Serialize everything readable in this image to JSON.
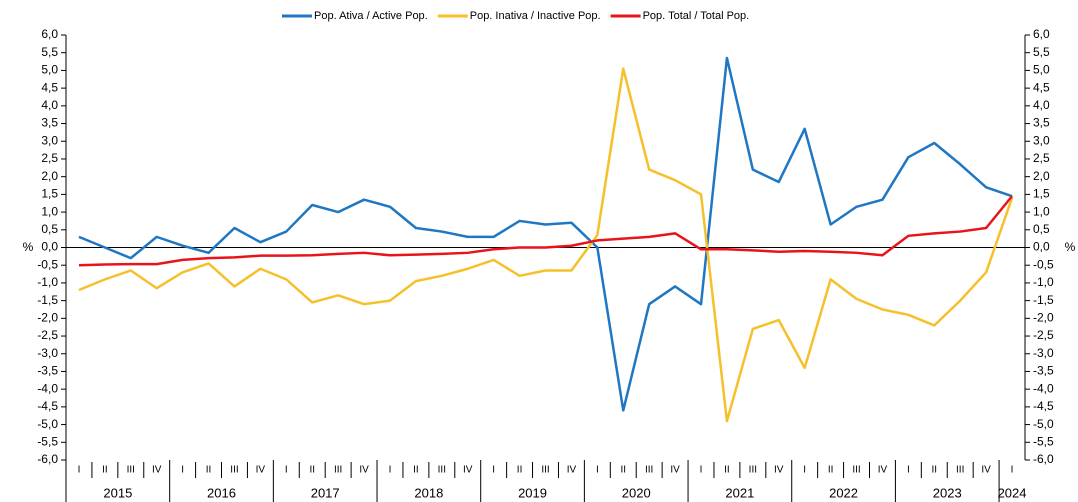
{
  "chart_data": {
    "type": "line",
    "ylabel": "%",
    "y2label": "%",
    "categories": [
      "I",
      "II",
      "III",
      "IV",
      "I",
      "II",
      "III",
      "IV",
      "I",
      "II",
      "III",
      "IV",
      "I",
      "II",
      "III",
      "IV",
      "I",
      "II",
      "III",
      "IV",
      "I",
      "II",
      "III",
      "IV",
      "I",
      "II",
      "III",
      "IV",
      "I",
      "II",
      "III",
      "IV",
      "I",
      "II",
      "III",
      "IV",
      "I"
    ],
    "years": [
      "2015",
      "2016",
      "2017",
      "2018",
      "2019",
      "2020",
      "2021",
      "2022",
      "2023",
      "2024"
    ],
    "series": [
      {
        "name": "Pop. Ativa / Active Pop.",
        "color": "#1f77c4",
        "values": [
          0.3,
          0.0,
          -0.3,
          0.3,
          0.05,
          -0.15,
          0.55,
          0.15,
          0.45,
          1.2,
          1.0,
          1.35,
          1.15,
          0.55,
          0.45,
          0.3,
          0.3,
          0.75,
          0.65,
          0.7,
          0.0,
          -4.6,
          -1.6,
          -1.1,
          -1.6,
          5.35,
          2.2,
          1.85,
          3.35,
          0.65,
          1.15,
          1.35,
          2.55,
          2.95,
          2.35,
          1.7,
          1.45
        ]
      },
      {
        "name": "Pop. Inativa / Inactive Pop.",
        "color": "#f5c02a",
        "values": [
          -1.2,
          -0.9,
          -0.65,
          -1.15,
          -0.7,
          -0.45,
          -1.1,
          -0.6,
          -0.9,
          -1.55,
          -1.35,
          -1.6,
          -1.5,
          -0.95,
          -0.8,
          -0.6,
          -0.35,
          -0.8,
          -0.65,
          -0.65,
          0.35,
          5.05,
          2.2,
          1.9,
          1.5,
          -4.9,
          -2.3,
          -2.05,
          -3.4,
          -0.9,
          -1.45,
          -1.75,
          -1.9,
          -2.2,
          -1.5,
          -0.7,
          1.4
        ]
      },
      {
        "name": "Pop. Total / Total Pop.",
        "color": "#e8141c",
        "values": [
          -0.5,
          -0.48,
          -0.47,
          -0.47,
          -0.35,
          -0.3,
          -0.28,
          -0.23,
          -0.23,
          -0.22,
          -0.18,
          -0.15,
          -0.22,
          -0.2,
          -0.18,
          -0.15,
          -0.05,
          0.0,
          0.0,
          0.05,
          0.2,
          0.25,
          0.3,
          0.4,
          -0.05,
          -0.05,
          -0.08,
          -0.12,
          -0.1,
          -0.12,
          -0.15,
          -0.22,
          0.33,
          0.4,
          0.45,
          0.55,
          1.45
        ]
      }
    ],
    "ylim": [
      -6,
      6
    ],
    "yticks": [
      {
        "value": -6,
        "label": "-6,0"
      },
      {
        "value": -5.5,
        "label": "-5,5"
      },
      {
        "value": -5,
        "label": "-5,0"
      },
      {
        "value": -4.5,
        "label": "-4,5"
      },
      {
        "value": -4,
        "label": "-4,0"
      },
      {
        "value": -3.5,
        "label": "-3,5"
      },
      {
        "value": -3,
        "label": "-3,0"
      },
      {
        "value": -2.5,
        "label": "-2,5"
      },
      {
        "value": -2,
        "label": "-2,0"
      },
      {
        "value": -1.5,
        "label": "-1,5"
      },
      {
        "value": -1,
        "label": "-1,0"
      },
      {
        "value": -0.5,
        "label": "-0,5"
      },
      {
        "value": 0,
        "label": "0,0"
      },
      {
        "value": 0.5,
        "label": "0,5"
      },
      {
        "value": 1,
        "label": "1,0"
      },
      {
        "value": 1.5,
        "label": "1,5"
      },
      {
        "value": 2,
        "label": "2,0"
      },
      {
        "value": 2.5,
        "label": "2,5"
      },
      {
        "value": 3,
        "label": "3,0"
      },
      {
        "value": 3.5,
        "label": "3,5"
      },
      {
        "value": 4,
        "label": "4,0"
      },
      {
        "value": 4.5,
        "label": "4,5"
      },
      {
        "value": 5,
        "label": "5,0"
      },
      {
        "value": 5.5,
        "label": "5,5"
      },
      {
        "value": 6,
        "label": "6,0"
      }
    ],
    "y2lim": [
      -6,
      6
    ],
    "y2ticks": [
      {
        "value": -6,
        "label": "-6,0"
      },
      {
        "value": -5.5,
        "label": "-5,5"
      },
      {
        "value": -5,
        "label": "-5,0"
      },
      {
        "value": -4.5,
        "label": "-4,5"
      },
      {
        "value": -4,
        "label": "-4,0"
      },
      {
        "value": -3.5,
        "label": "-3,5"
      },
      {
        "value": -3,
        "label": "-3,0"
      },
      {
        "value": -2.5,
        "label": "-2,5"
      },
      {
        "value": -2,
        "label": "-2,0"
      },
      {
        "value": -1.5,
        "label": "-1,5"
      },
      {
        "value": -1,
        "label": "-1,0"
      },
      {
        "value": -0.5,
        "label": "-0,5"
      },
      {
        "value": 0,
        "label": "0,0"
      },
      {
        "value": 0.5,
        "label": "0,5"
      },
      {
        "value": 1,
        "label": "1,0"
      },
      {
        "value": 1.5,
        "label": "1,5"
      },
      {
        "value": 2,
        "label": "2,0"
      },
      {
        "value": 2.5,
        "label": "2,5"
      },
      {
        "value": 3,
        "label": "3,0"
      },
      {
        "value": 3.5,
        "label": "3,5"
      },
      {
        "value": 4,
        "label": "4,0"
      },
      {
        "value": 4.5,
        "label": "4,5"
      },
      {
        "value": 5,
        "label": "5,0"
      },
      {
        "value": 5.5,
        "label": "5,5"
      },
      {
        "value": 6,
        "label": "6,0"
      }
    ],
    "grid": false,
    "legend": "top"
  }
}
